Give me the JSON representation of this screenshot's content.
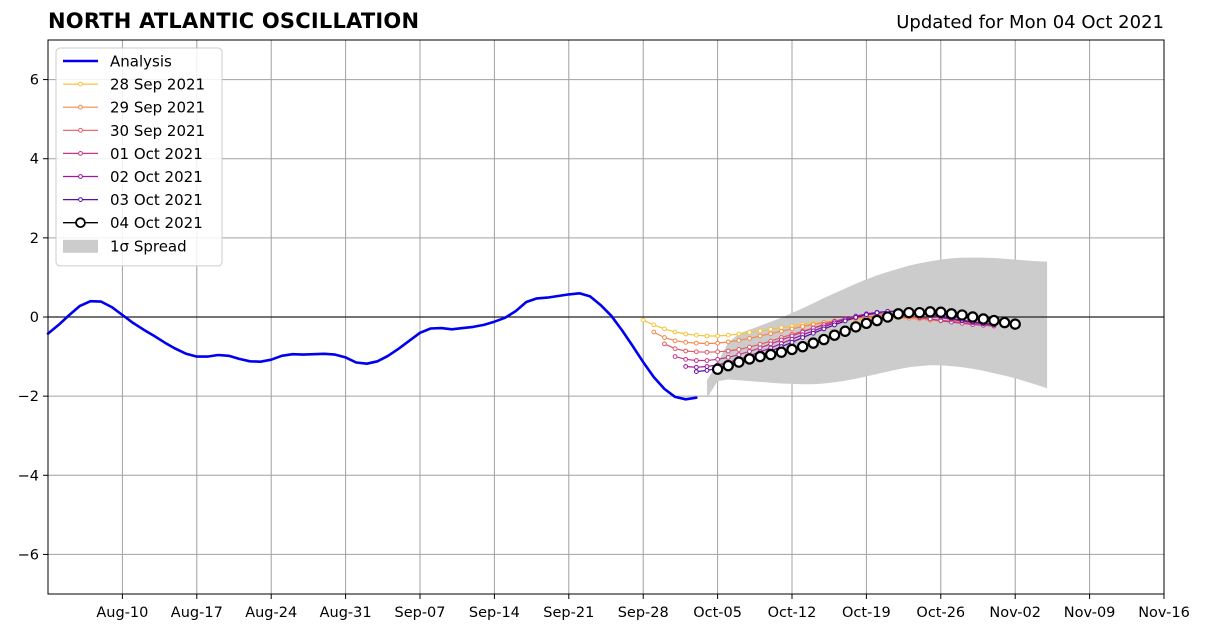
{
  "header": {
    "title": "NORTH ATLANTIC OSCILLATION",
    "updated": "Updated for Mon 04 Oct 2021"
  },
  "chart_data": {
    "type": "line",
    "x_unit": "day offset is not used; x values are dates in 2021",
    "xlim": [
      "2021-08-03",
      "2021-11-16"
    ],
    "ylim": [
      -7,
      7
    ],
    "grid": true,
    "legend_position": "top-left",
    "x_ticks": [
      {
        "date": "2021-08-10",
        "label": "Aug-10"
      },
      {
        "date": "2021-08-17",
        "label": "Aug-17"
      },
      {
        "date": "2021-08-24",
        "label": "Aug-24"
      },
      {
        "date": "2021-08-31",
        "label": "Aug-31"
      },
      {
        "date": "2021-09-07",
        "label": "Sep-07"
      },
      {
        "date": "2021-09-14",
        "label": "Sep-14"
      },
      {
        "date": "2021-09-21",
        "label": "Sep-21"
      },
      {
        "date": "2021-09-28",
        "label": "Sep-28"
      },
      {
        "date": "2021-10-05",
        "label": "Oct-05"
      },
      {
        "date": "2021-10-12",
        "label": "Oct-12"
      },
      {
        "date": "2021-10-19",
        "label": "Oct-19"
      },
      {
        "date": "2021-10-26",
        "label": "Oct-26"
      },
      {
        "date": "2021-11-02",
        "label": "Nov-02"
      },
      {
        "date": "2021-11-09",
        "label": "Nov-09"
      },
      {
        "date": "2021-11-16",
        "label": "Nov-16"
      }
    ],
    "y_ticks": [
      {
        "value": 6,
        "label": "6"
      },
      {
        "value": 4,
        "label": "4"
      },
      {
        "value": 2,
        "label": "2"
      },
      {
        "value": 0,
        "label": "0"
      },
      {
        "value": -2,
        "label": "−2"
      },
      {
        "value": -4,
        "label": "−4"
      },
      {
        "value": -6,
        "label": "−6"
      }
    ],
    "analysis": {
      "name": "Analysis",
      "color": "#0000ee",
      "start_date": "2021-08-03",
      "values": [
        -0.42,
        -0.2,
        0.05,
        0.28,
        0.4,
        0.39,
        0.25,
        0.05,
        -0.15,
        -0.32,
        -0.48,
        -0.65,
        -0.8,
        -0.93,
        -1.0,
        -1.0,
        -0.96,
        -0.98,
        -1.06,
        -1.12,
        -1.13,
        -1.08,
        -0.98,
        -0.94,
        -0.95,
        -0.94,
        -0.93,
        -0.95,
        -1.02,
        -1.15,
        -1.18,
        -1.12,
        -0.98,
        -0.8,
        -0.6,
        -0.4,
        -0.29,
        -0.28,
        -0.31,
        -0.28,
        -0.25,
        -0.2,
        -0.12,
        -0.02,
        0.15,
        0.38,
        0.47,
        0.49,
        0.53,
        0.57,
        0.6,
        0.52,
        0.3,
        0.03,
        -0.33,
        -0.73,
        -1.14,
        -1.52,
        -1.82,
        -2.02,
        -2.08,
        -2.04
      ]
    },
    "spread": {
      "name": "1σ Spread",
      "color": "#cccccc",
      "start_date": "2021-10-04",
      "upper": [
        -1.6,
        -1.15,
        -0.65,
        -0.42,
        -0.32,
        -0.22,
        -0.12,
        -0.02,
        0.1,
        0.22,
        0.35,
        0.48,
        0.6,
        0.72,
        0.84,
        0.95,
        1.05,
        1.14,
        1.22,
        1.3,
        1.36,
        1.41,
        1.45,
        1.48,
        1.5,
        1.5,
        1.5,
        1.49,
        1.47,
        1.45,
        1.43,
        1.41,
        1.4
      ],
      "lower": [
        -2.05,
        -1.62,
        -1.58,
        -1.6,
        -1.62,
        -1.64,
        -1.66,
        -1.68,
        -1.69,
        -1.7,
        -1.7,
        -1.68,
        -1.65,
        -1.61,
        -1.56,
        -1.5,
        -1.44,
        -1.38,
        -1.32,
        -1.27,
        -1.24,
        -1.22,
        -1.22,
        -1.24,
        -1.27,
        -1.31,
        -1.36,
        -1.42,
        -1.48,
        -1.55,
        -1.63,
        -1.71,
        -1.8
      ]
    },
    "forecasts": [
      {
        "name": "28 Sep 2021",
        "color": "#f9c23c",
        "start_date": "2021-09-28",
        "values": [
          -0.08,
          -0.2,
          -0.3,
          -0.38,
          -0.43,
          -0.46,
          -0.48,
          -0.48,
          -0.46,
          -0.43,
          -0.39,
          -0.35,
          -0.31,
          -0.27,
          -0.23,
          -0.19,
          -0.16,
          -0.13,
          -0.1,
          -0.08,
          -0.06,
          -0.04,
          -0.03,
          -0.02,
          -0.02,
          -0.03,
          -0.04,
          -0.06,
          -0.08,
          -0.1,
          -0.12,
          -0.15,
          -0.17,
          -0.19
        ]
      },
      {
        "name": "29 Sep 2021",
        "color": "#f4894b",
        "start_date": "2021-09-29",
        "values": [
          -0.38,
          -0.52,
          -0.6,
          -0.64,
          -0.66,
          -0.67,
          -0.66,
          -0.63,
          -0.59,
          -0.54,
          -0.48,
          -0.42,
          -0.36,
          -0.3,
          -0.24,
          -0.19,
          -0.14,
          -0.1,
          -0.06,
          -0.03,
          -0.01,
          0.0,
          0.0,
          -0.01,
          -0.03,
          -0.05,
          -0.08,
          -0.1,
          -0.12,
          -0.14,
          -0.16,
          -0.18,
          -0.2
        ]
      },
      {
        "name": "30 Sep 2021",
        "color": "#e05c6a",
        "start_date": "2021-09-30",
        "values": [
          -0.68,
          -0.8,
          -0.86,
          -0.88,
          -0.89,
          -0.88,
          -0.86,
          -0.82,
          -0.76,
          -0.69,
          -0.61,
          -0.52,
          -0.44,
          -0.36,
          -0.28,
          -0.21,
          -0.14,
          -0.08,
          -0.03,
          0.01,
          0.03,
          0.04,
          0.03,
          0.01,
          -0.02,
          -0.05,
          -0.08,
          -0.11,
          -0.14,
          -0.17,
          -0.19,
          -0.21
        ]
      },
      {
        "name": "01 Oct 2021",
        "color": "#c2378a",
        "start_date": "2021-10-01",
        "values": [
          -1.0,
          -1.07,
          -1.1,
          -1.1,
          -1.07,
          -1.02,
          -0.95,
          -0.87,
          -0.78,
          -0.68,
          -0.58,
          -0.48,
          -0.38,
          -0.28,
          -0.19,
          -0.11,
          -0.04,
          0.02,
          0.06,
          0.08,
          0.08,
          0.06,
          0.03,
          -0.01,
          -0.05,
          -0.09,
          -0.13,
          -0.16,
          -0.19,
          -0.21,
          -0.23
        ]
      },
      {
        "name": "02 Oct 2021",
        "color": "#9b179e",
        "start_date": "2021-10-02",
        "values": [
          -1.25,
          -1.27,
          -1.25,
          -1.21,
          -1.15,
          -1.07,
          -0.98,
          -0.88,
          -0.78,
          -0.67,
          -0.56,
          -0.45,
          -0.35,
          -0.25,
          -0.15,
          -0.06,
          0.02,
          0.08,
          0.12,
          0.14,
          0.14,
          0.12,
          0.08,
          0.04,
          -0.01,
          -0.06,
          -0.1,
          -0.14,
          -0.17,
          -0.2
        ]
      },
      {
        "name": "03 Oct 2021",
        "color": "#5c0ea0",
        "start_date": "2021-10-03",
        "values": [
          -1.38,
          -1.35,
          -1.3,
          -1.24,
          -1.16,
          -1.07,
          -0.97,
          -0.86,
          -0.75,
          -0.64,
          -0.52,
          -0.41,
          -0.3,
          -0.2,
          -0.1,
          -0.01,
          0.06,
          0.11,
          0.14,
          0.15,
          0.14,
          0.11,
          0.07,
          0.02,
          -0.03,
          -0.08,
          -0.12,
          -0.16,
          -0.19
        ]
      },
      {
        "name": "04 Oct 2021",
        "color": "#000000",
        "start_date": "2021-10-05",
        "values": [
          -1.32,
          -1.23,
          -1.14,
          -1.06,
          -1.0,
          -0.95,
          -0.89,
          -0.82,
          -0.75,
          -0.66,
          -0.57,
          -0.46,
          -0.36,
          -0.25,
          -0.16,
          -0.09,
          0.0,
          0.08,
          0.11,
          0.11,
          0.13,
          0.12,
          0.08,
          0.05,
          0.0,
          -0.05,
          -0.09,
          -0.14,
          -0.18
        ]
      }
    ]
  }
}
